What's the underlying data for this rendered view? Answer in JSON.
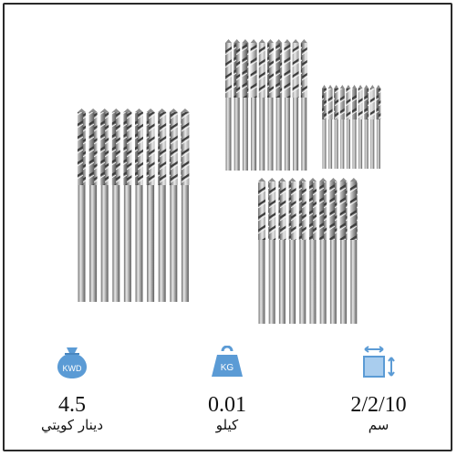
{
  "product_image": {
    "description_icon": "drill-bits-set-photo"
  },
  "stats": {
    "weight_money": {
      "icon": "money-bag-icon",
      "icon_text": "KWD",
      "value": "4.5",
      "unit": "دينار كويتي"
    },
    "weight": {
      "icon": "weight-kg-icon",
      "icon_text": "KG",
      "value": "0.01",
      "unit": "كيلو"
    },
    "dimensions": {
      "icon": "box-dimensions-icon",
      "value": "2/2/10",
      "unit": "سم"
    }
  },
  "colors": {
    "icon_blue": "#5b9bd5",
    "icon_light": "#a9cdee",
    "border": "#2a2a2a"
  }
}
